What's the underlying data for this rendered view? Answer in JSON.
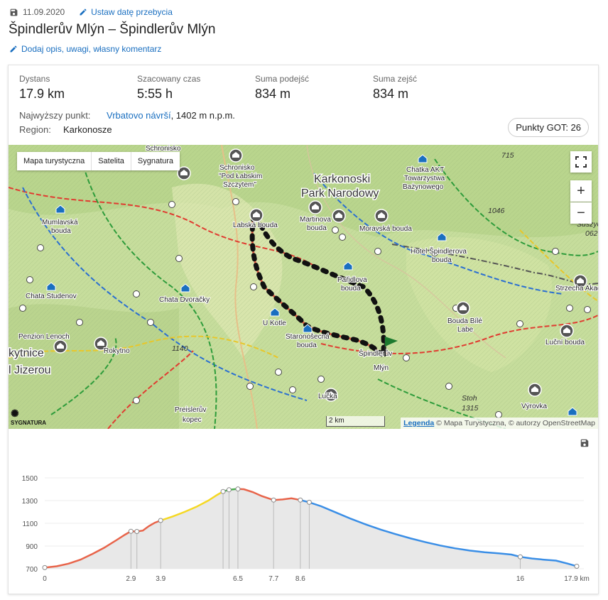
{
  "header": {
    "date": "11.09.2020",
    "set_date_label": "Ustaw datę przebycia",
    "title": "Špindlerův Mlýn – Špindlerův Mlýn",
    "add_description_label": "Dodaj opis, uwagi, własny komentarz"
  },
  "stats": [
    {
      "label": "Dystans",
      "value": "17.9 km"
    },
    {
      "label": "Szacowany czas",
      "value": "5:55 h"
    },
    {
      "label": "Suma podejść",
      "value": "834 m"
    },
    {
      "label": "Suma zejść",
      "value": "834 m"
    }
  ],
  "highest_point": {
    "label": "Najwyższy punkt:",
    "name": "Vrbatovo návrší",
    "rest": ", 1402 m n.p.m."
  },
  "region": {
    "label": "Region:",
    "value": "Karkonosze"
  },
  "got_points": "Punkty GOT: 26",
  "map": {
    "tabs": [
      "Mapa turystyczna",
      "Satelita",
      "Sygnatura"
    ],
    "zoom_in": "+",
    "zoom_out": "−",
    "scale": "2 km",
    "legend_link": "Legenda",
    "attribution": " © Mapa Turystyczna, © autorzy OpenStreetMap",
    "logo": "SYGNATURA",
    "labels": [
      {
        "t": "Schronisko",
        "x": 193,
        "y": 8
      },
      {
        "t": "Schronisko",
        "x": 297,
        "y": 35
      },
      {
        "t": "\"Pod Łabskim",
        "x": 296,
        "y": 47
      },
      {
        "t": "Szczytem\"",
        "x": 302,
        "y": 59
      },
      {
        "t": "Chatka AKT",
        "x": 560,
        "y": 38
      },
      {
        "t": "Towarzystwa",
        "x": 557,
        "y": 50
      },
      {
        "t": "Bażynowego",
        "x": 555,
        "y": 62
      },
      {
        "t": "Mumlavská",
        "x": 47,
        "y": 112
      },
      {
        "t": "bouda",
        "x": 60,
        "y": 124
      },
      {
        "t": "Labská bouda",
        "x": 316,
        "y": 116
      },
      {
        "t": "Martinova",
        "x": 410,
        "y": 108
      },
      {
        "t": "bouda",
        "x": 420,
        "y": 120
      },
      {
        "t": "Moravská bouda",
        "x": 494,
        "y": 121
      },
      {
        "t": "Hotel Špindlerova",
        "x": 566,
        "y": 153
      },
      {
        "t": "bouda",
        "x": 596,
        "y": 165
      },
      {
        "t": "Pařidlova",
        "x": 463,
        "y": 193
      },
      {
        "t": "bouda",
        "x": 468,
        "y": 205
      },
      {
        "t": "Chata Studenov",
        "x": 24,
        "y": 216
      },
      {
        "t": "Chata Dvoračky",
        "x": 212,
        "y": 221
      },
      {
        "t": "U Kotle",
        "x": 358,
        "y": 254
      },
      {
        "t": "Bouda Bílé",
        "x": 618,
        "y": 251
      },
      {
        "t": "Labe",
        "x": 632,
        "y": 263
      },
      {
        "t": "Penzion Lenoch",
        "x": 14,
        "y": 273
      },
      {
        "t": "Staronošecná",
        "x": 390,
        "y": 273
      },
      {
        "t": "bouda",
        "x": 406,
        "y": 285
      },
      {
        "t": "Luční bouda",
        "x": 756,
        "y": 281
      },
      {
        "t": "Rokytno",
        "x": 134,
        "y": 293
      },
      {
        "t": "Špindlerův",
        "x": 493,
        "y": 297
      },
      {
        "t": "Mlýn",
        "x": 514,
        "y": 317
      },
      {
        "t": "Strzecha Akad",
        "x": 770,
        "y": 205
      },
      {
        "t": "Výrovka",
        "x": 722,
        "y": 371
      },
      {
        "t": "Preislerův",
        "x": 234,
        "y": 376
      },
      {
        "t": "kopec",
        "x": 245,
        "y": 390
      },
      {
        "t": "Lučka",
        "x": 436,
        "y": 357
      }
    ],
    "big_labels": [
      {
        "t": "Karkonoski",
        "x": 430,
        "y": 53
      },
      {
        "t": "Park Narodowy",
        "x": 412,
        "y": 73
      },
      {
        "t": "kytnice",
        "x": 0,
        "y": 298
      },
      {
        "t": "l Jizerou",
        "x": 0,
        "y": 322
      }
    ],
    "heights": [
      {
        "t": "715",
        "x": 694,
        "y": 18
      },
      {
        "t": "1046",
        "x": 675,
        "y": 96
      },
      {
        "t": "1140",
        "x": 230,
        "y": 290
      },
      {
        "t": "Stoh",
        "x": 638,
        "y": 360
      },
      {
        "t": "1315",
        "x": 638,
        "y": 374
      },
      {
        "t": "Suszyc",
        "x": 800,
        "y": 115
      },
      {
        "t": "062",
        "x": 812,
        "y": 128
      }
    ]
  },
  "chart_data": {
    "type": "area",
    "title": "",
    "xlabel": "",
    "ylabel": "",
    "x_unit": "km",
    "xlim": [
      0,
      17.9
    ],
    "ylim": [
      700,
      1500
    ],
    "yticks": [
      700,
      900,
      1100,
      1300,
      1500
    ],
    "xticks": [
      {
        "v": 0,
        "label": "0"
      },
      {
        "v": 2.9,
        "label": "2.9"
      },
      {
        "v": 3.9,
        "label": "3.9"
      },
      {
        "v": 6.5,
        "label": "6.5"
      },
      {
        "v": 7.7,
        "label": "7.7"
      },
      {
        "v": 8.6,
        "label": "8.6"
      },
      {
        "v": 16,
        "label": "16"
      },
      {
        "v": 17.9,
        "label": "17.9 km"
      }
    ],
    "points": [
      [
        0,
        710
      ],
      [
        0.4,
        722
      ],
      [
        0.8,
        745
      ],
      [
        1.2,
        780
      ],
      [
        1.6,
        830
      ],
      [
        2.0,
        885
      ],
      [
        2.4,
        950
      ],
      [
        2.7,
        1000
      ],
      [
        2.9,
        1030
      ],
      [
        3.1,
        1028
      ],
      [
        3.3,
        1036
      ],
      [
        3.5,
        1075
      ],
      [
        3.7,
        1105
      ],
      [
        3.9,
        1125
      ],
      [
        4.3,
        1160
      ],
      [
        4.7,
        1200
      ],
      [
        5.1,
        1245
      ],
      [
        5.5,
        1300
      ],
      [
        5.8,
        1350
      ],
      [
        6.0,
        1380
      ],
      [
        6.2,
        1395
      ],
      [
        6.4,
        1401
      ],
      [
        6.5,
        1402
      ],
      [
        6.7,
        1400
      ],
      [
        7.0,
        1375
      ],
      [
        7.3,
        1340
      ],
      [
        7.7,
        1305
      ],
      [
        8.0,
        1310
      ],
      [
        8.3,
        1320
      ],
      [
        8.6,
        1305
      ],
      [
        8.9,
        1285
      ],
      [
        9.3,
        1250
      ],
      [
        9.8,
        1195
      ],
      [
        10.3,
        1140
      ],
      [
        10.8,
        1090
      ],
      [
        11.3,
        1045
      ],
      [
        11.8,
        1005
      ],
      [
        12.3,
        968
      ],
      [
        12.8,
        935
      ],
      [
        13.3,
        905
      ],
      [
        13.8,
        880
      ],
      [
        14.3,
        860
      ],
      [
        14.8,
        845
      ],
      [
        15.3,
        835
      ],
      [
        15.7,
        825
      ],
      [
        16.0,
        805
      ],
      [
        16.4,
        790
      ],
      [
        16.8,
        780
      ],
      [
        17.2,
        772
      ],
      [
        17.6,
        745
      ],
      [
        17.9,
        722
      ]
    ],
    "waypoints": [
      0,
      2.9,
      3.1,
      3.9,
      6.0,
      6.2,
      6.5,
      7.7,
      8.6,
      8.9,
      16,
      17.9
    ],
    "segments": [
      {
        "from": 0,
        "to": 3.9,
        "color": "#e8644a"
      },
      {
        "from": 3.9,
        "to": 6.0,
        "color": "#f5d823"
      },
      {
        "from": 6.0,
        "to": 6.5,
        "color": "#4caf50"
      },
      {
        "from": 6.5,
        "to": 8.6,
        "color": "#e8644a"
      },
      {
        "from": 8.6,
        "to": 17.9,
        "color": "#3a8ee6"
      }
    ]
  }
}
